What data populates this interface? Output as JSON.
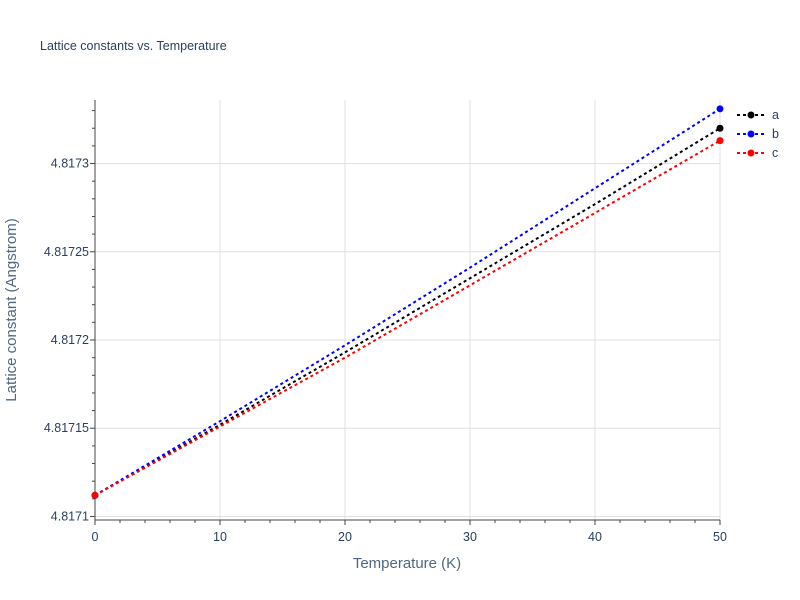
{
  "chart_data": {
    "type": "line",
    "title": "Lattice constants vs. Temperature",
    "xlabel": "Temperature (K)",
    "ylabel": "Lattice constant (Angstrom)",
    "xlim": [
      0,
      50
    ],
    "ylim": [
      4.817098,
      4.817336
    ],
    "x_ticks": [
      0,
      10,
      20,
      30,
      40,
      50
    ],
    "y_ticks": [
      4.8171,
      4.81715,
      4.8172,
      4.81725,
      4.8173
    ],
    "y_tick_labels": [
      "4.8171",
      "4.81715",
      "4.8172",
      "4.81725",
      "4.8173"
    ],
    "grid": true,
    "legend_position": "top-right",
    "series": [
      {
        "name": "a",
        "color": "#000000",
        "x": [
          0,
          10,
          20,
          30,
          40,
          50
        ],
        "y": [
          4.817112,
          4.817152,
          4.817193,
          4.817235,
          4.817277,
          4.81732
        ]
      },
      {
        "name": "b",
        "color": "#0000ff",
        "x": [
          0,
          10,
          20,
          30,
          40,
          50
        ],
        "y": [
          4.817112,
          4.817154,
          4.817197,
          4.817241,
          4.817286,
          4.817331
        ]
      },
      {
        "name": "c",
        "color": "#ff0000",
        "x": [
          0,
          10,
          20,
          30,
          40,
          50
        ],
        "y": [
          4.817112,
          4.817151,
          4.81719,
          4.817231,
          4.817272,
          4.817313
        ]
      }
    ]
  }
}
